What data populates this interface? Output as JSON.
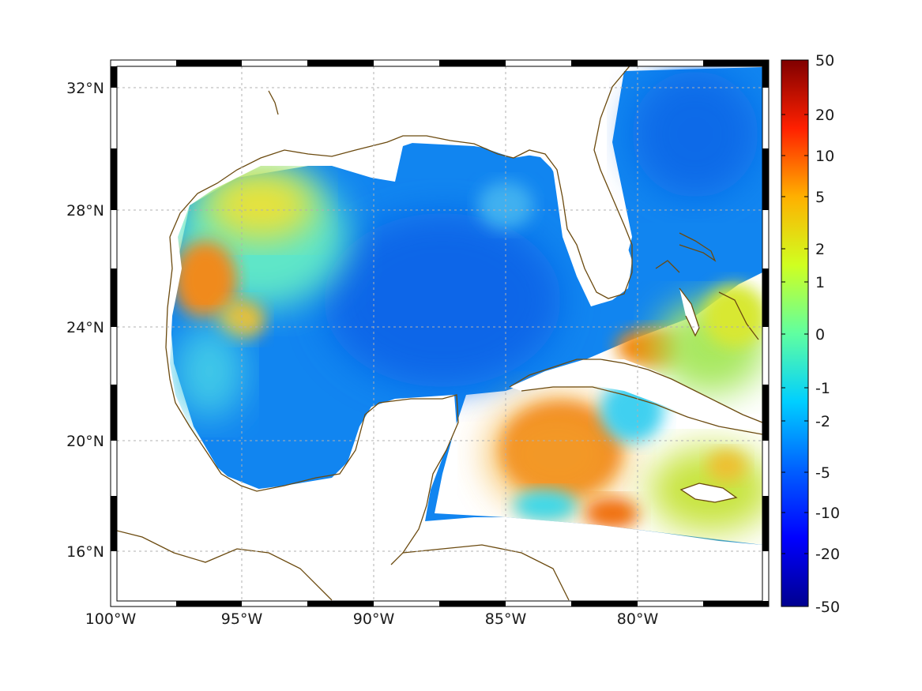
{
  "map": {
    "lon_labels": [
      "100°W",
      "95°W",
      "90°W",
      "85°W",
      "80°W"
    ],
    "lat_labels": [
      "32°N",
      "28°N",
      "24°N",
      "20°N",
      "16°N"
    ],
    "lon_values": [
      -100,
      -95,
      -90,
      -85,
      -80
    ],
    "lat_values": [
      32,
      28,
      24,
      20,
      16
    ],
    "lon_range": [
      -100,
      -75
    ],
    "lat_range": [
      14.3,
      33
    ],
    "grid": true,
    "coastline_color": "#6b4a0f",
    "land_color": "#ffffff"
  },
  "colorbar": {
    "tick_labels": [
      "50",
      "20",
      "10",
      "5",
      "2",
      "1",
      "0",
      "-1",
      "-2",
      "-5",
      "-10",
      "-20",
      "-50"
    ],
    "tick_values": [
      50,
      20,
      10,
      5,
      2,
      1,
      0,
      -1,
      -2,
      -5,
      -10,
      -20,
      -50
    ],
    "colormap": "jet",
    "colors": [
      "#00008f",
      "#0000ff",
      "#007fff",
      "#00ffff",
      "#80ff80",
      "#ffff00",
      "#ff8000",
      "#ff0000",
      "#800000"
    ]
  }
}
